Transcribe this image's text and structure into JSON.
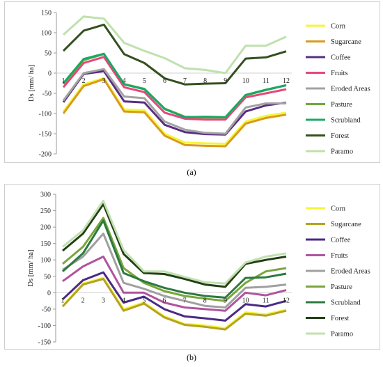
{
  "captions": {
    "a": "(a)",
    "b": "(b)"
  },
  "chart_data": [
    {
      "type": "line",
      "ylabel": "Ds [mm/ ha]",
      "ylim": [
        -200,
        150
      ],
      "yticks": [
        -200,
        -150,
        -100,
        -50,
        0,
        50,
        100,
        150
      ],
      "x": [
        1,
        2,
        3,
        4,
        5,
        6,
        7,
        8,
        9,
        10,
        11,
        12
      ],
      "xtick_labels": [
        "1",
        "2",
        "3",
        "4",
        "5",
        "6",
        "7",
        "8",
        "9",
        "10",
        "11",
        "12"
      ],
      "legend_position": "right",
      "series": [
        {
          "name": "Corn",
          "color": "#f5f53a",
          "values": [
            -95,
            -28,
            -12,
            -90,
            -92,
            -150,
            -172,
            -174,
            -175,
            -120,
            -106,
            -98
          ]
        },
        {
          "name": "Sugarcane",
          "color": "#d99a1e",
          "values": [
            -100,
            -32,
            -15,
            -95,
            -97,
            -155,
            -178,
            -180,
            -181,
            -125,
            -111,
            -103
          ]
        },
        {
          "name": "Coffee",
          "color": "#5a2d82",
          "values": [
            -72,
            -2,
            5,
            -70,
            -73,
            -128,
            -146,
            -151,
            -152,
            -95,
            -80,
            -73
          ]
        },
        {
          "name": "Fruits",
          "color": "#e8457e",
          "values": [
            -35,
            25,
            40,
            -35,
            -47,
            -98,
            -113,
            -115,
            -115,
            -60,
            -50,
            -40
          ]
        },
        {
          "name": "Eroded Areas",
          "color": "#a3a3a3",
          "values": [
            -68,
            0,
            10,
            -58,
            -62,
            -120,
            -140,
            -148,
            -150,
            -85,
            -75,
            -75
          ]
        },
        {
          "name": "Pasture",
          "color": "#6fa83b",
          "values": [
            -27,
            32,
            47,
            -27,
            -39,
            -88,
            -108,
            -110,
            -110,
            -55,
            -42,
            -30
          ]
        },
        {
          "name": "Scrubland",
          "color": "#1aa865",
          "values": [
            -25,
            35,
            48,
            -28,
            -40,
            -89,
            -109,
            -108,
            -109,
            -54,
            -41,
            -30
          ]
        },
        {
          "name": "Forest",
          "color": "#34501f",
          "values": [
            55,
            105,
            120,
            47,
            25,
            -13,
            -28,
            -26,
            -25,
            36,
            39,
            54
          ]
        },
        {
          "name": "Paramo",
          "color": "#bfe1ae",
          "values": [
            95,
            140,
            135,
            75,
            55,
            37,
            12,
            8,
            0,
            68,
            68,
            90
          ]
        }
      ]
    },
    {
      "type": "line",
      "ylabel": "Ds [mm/ ha]",
      "ylim": [
        -150,
        300
      ],
      "yticks": [
        -150,
        -100,
        -50,
        0,
        50,
        100,
        150,
        200,
        250,
        300
      ],
      "x": [
        1,
        2,
        3,
        4,
        5,
        6,
        7,
        8,
        9,
        10,
        11,
        12
      ],
      "xtick_labels": [
        "1",
        "2",
        "3",
        "4",
        "5",
        "6",
        "7",
        "8",
        "9",
        "10",
        "11",
        "12"
      ],
      "legend_position": "right",
      "series": [
        {
          "name": "Corn",
          "color": "#f5f53a",
          "values": [
            -40,
            28,
            45,
            -50,
            -30,
            -72,
            -95,
            -100,
            -108,
            -60,
            -66,
            -52
          ]
        },
        {
          "name": "Sugarcane",
          "color": "#b4a224",
          "values": [
            -42,
            25,
            42,
            -55,
            -33,
            -75,
            -98,
            -104,
            -112,
            -64,
            -70,
            -55
          ]
        },
        {
          "name": "Coffee",
          "color": "#4a2a86",
          "values": [
            -20,
            38,
            62,
            -30,
            -12,
            -50,
            -72,
            -78,
            -85,
            -35,
            -42,
            -25
          ]
        },
        {
          "name": "Fruits",
          "color": "#b0549e",
          "values": [
            35,
            80,
            110,
            0,
            0,
            -30,
            -45,
            -50,
            -55,
            0,
            -8,
            8
          ]
        },
        {
          "name": "Eroded Areas",
          "color": "#a0a0a0",
          "values": [
            70,
            110,
            180,
            30,
            12,
            -10,
            -25,
            -40,
            -45,
            15,
            18,
            25
          ]
        },
        {
          "name": "Pasture",
          "color": "#79a63c",
          "values": [
            88,
            140,
            228,
            75,
            30,
            5,
            -10,
            -18,
            -25,
            30,
            65,
            75
          ]
        },
        {
          "name": "Scrubland",
          "color": "#2c7a3e",
          "values": [
            65,
            120,
            220,
            60,
            35,
            15,
            0,
            -10,
            -15,
            45,
            47,
            58
          ]
        },
        {
          "name": "Forest",
          "color": "#233f14",
          "values": [
            128,
            180,
            270,
            118,
            60,
            57,
            42,
            25,
            18,
            88,
            100,
            110
          ]
        },
        {
          "name": "Paramo",
          "color": "#c2e0b2",
          "values": [
            140,
            190,
            280,
            130,
            65,
            65,
            48,
            32,
            28,
            92,
            110,
            120
          ]
        }
      ]
    }
  ]
}
